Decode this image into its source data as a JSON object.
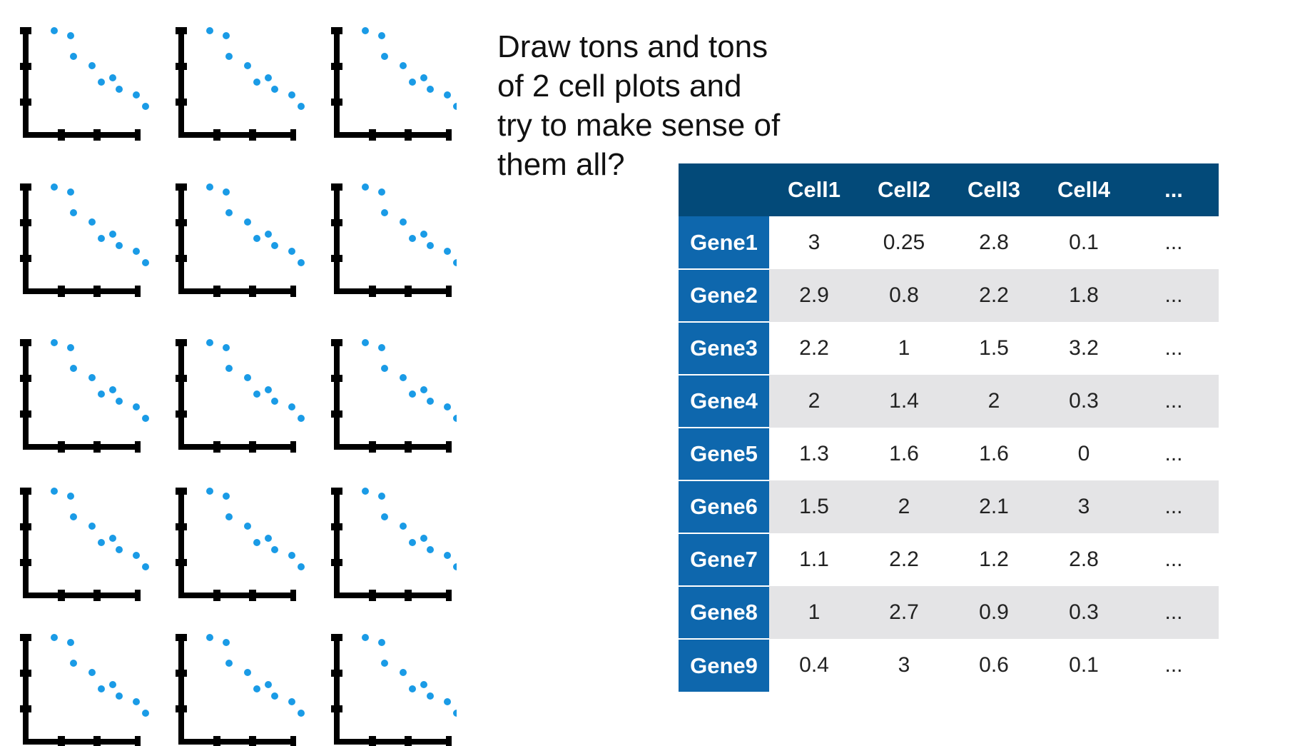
{
  "question_lines": [
    "Draw tons and tons",
    "of 2 cell plots and",
    "try to make sense of",
    "them all?"
  ],
  "plot_grid": {
    "rows": 5,
    "cols": 3,
    "point_color": "#1a9be6",
    "axis_color": "#000000"
  },
  "table": {
    "columns": [
      "",
      "Cell1",
      "Cell2",
      "Cell3",
      "Cell4",
      "..."
    ],
    "rows": [
      {
        "gene": "Gene1",
        "values": [
          "3",
          "0.25",
          "2.8",
          "0.1",
          "..."
        ]
      },
      {
        "gene": "Gene2",
        "values": [
          "2.9",
          "0.8",
          "2.2",
          "1.8",
          "..."
        ]
      },
      {
        "gene": "Gene3",
        "values": [
          "2.2",
          "1",
          "1.5",
          "3.2",
          "..."
        ]
      },
      {
        "gene": "Gene4",
        "values": [
          "2",
          "1.4",
          "2",
          "0.3",
          "..."
        ]
      },
      {
        "gene": "Gene5",
        "values": [
          "1.3",
          "1.6",
          "1.6",
          "0",
          "..."
        ]
      },
      {
        "gene": "Gene6",
        "values": [
          "1.5",
          "2",
          "2.1",
          "3",
          "..."
        ]
      },
      {
        "gene": "Gene7",
        "values": [
          "1.1",
          "2.2",
          "1.2",
          "2.8",
          "..."
        ]
      },
      {
        "gene": "Gene8",
        "values": [
          "1",
          "2.7",
          "0.9",
          "0.3",
          "..."
        ]
      },
      {
        "gene": "Gene9",
        "values": [
          "0.4",
          "3",
          "0.6",
          "0.1",
          "..."
        ]
      }
    ],
    "header_color": "#034a79",
    "rowheader_color": "#0e67ad",
    "stripe_color": "#e4e4e6"
  }
}
